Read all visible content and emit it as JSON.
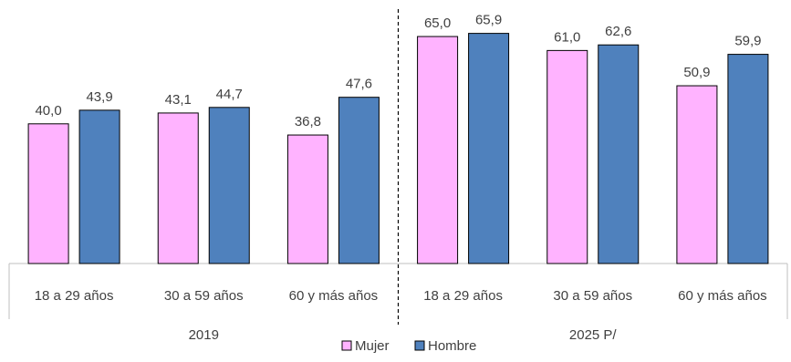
{
  "chart_data": {
    "type": "bar",
    "groups": [
      {
        "label": "2019",
        "categories": [
          "18 a 29 años",
          "30 a 59 años",
          "60 y más años"
        ]
      },
      {
        "label": "2025 P/",
        "categories": [
          "18 a 29 años",
          "30 a 59 años",
          "60 y más años"
        ]
      }
    ],
    "series": [
      {
        "name": "Mujer",
        "color": "#FFB3FF",
        "values": [
          40.0,
          43.1,
          36.8,
          65.0,
          61.0,
          50.9
        ],
        "labels": [
          "40,0",
          "43,1",
          "36,8",
          "65,0",
          "61,0",
          "50,9"
        ]
      },
      {
        "name": "Hombre",
        "color": "#4F81BD",
        "values": [
          43.9,
          44.7,
          47.6,
          65.9,
          62.6,
          59.9
        ],
        "labels": [
          "43,9",
          "44,7",
          "47,6",
          "65,9",
          "62,6",
          "59,9"
        ]
      }
    ],
    "ylim": [
      0,
      70
    ],
    "grid": false,
    "legend_position": "bottom",
    "separator_between_groups": "dashed"
  }
}
